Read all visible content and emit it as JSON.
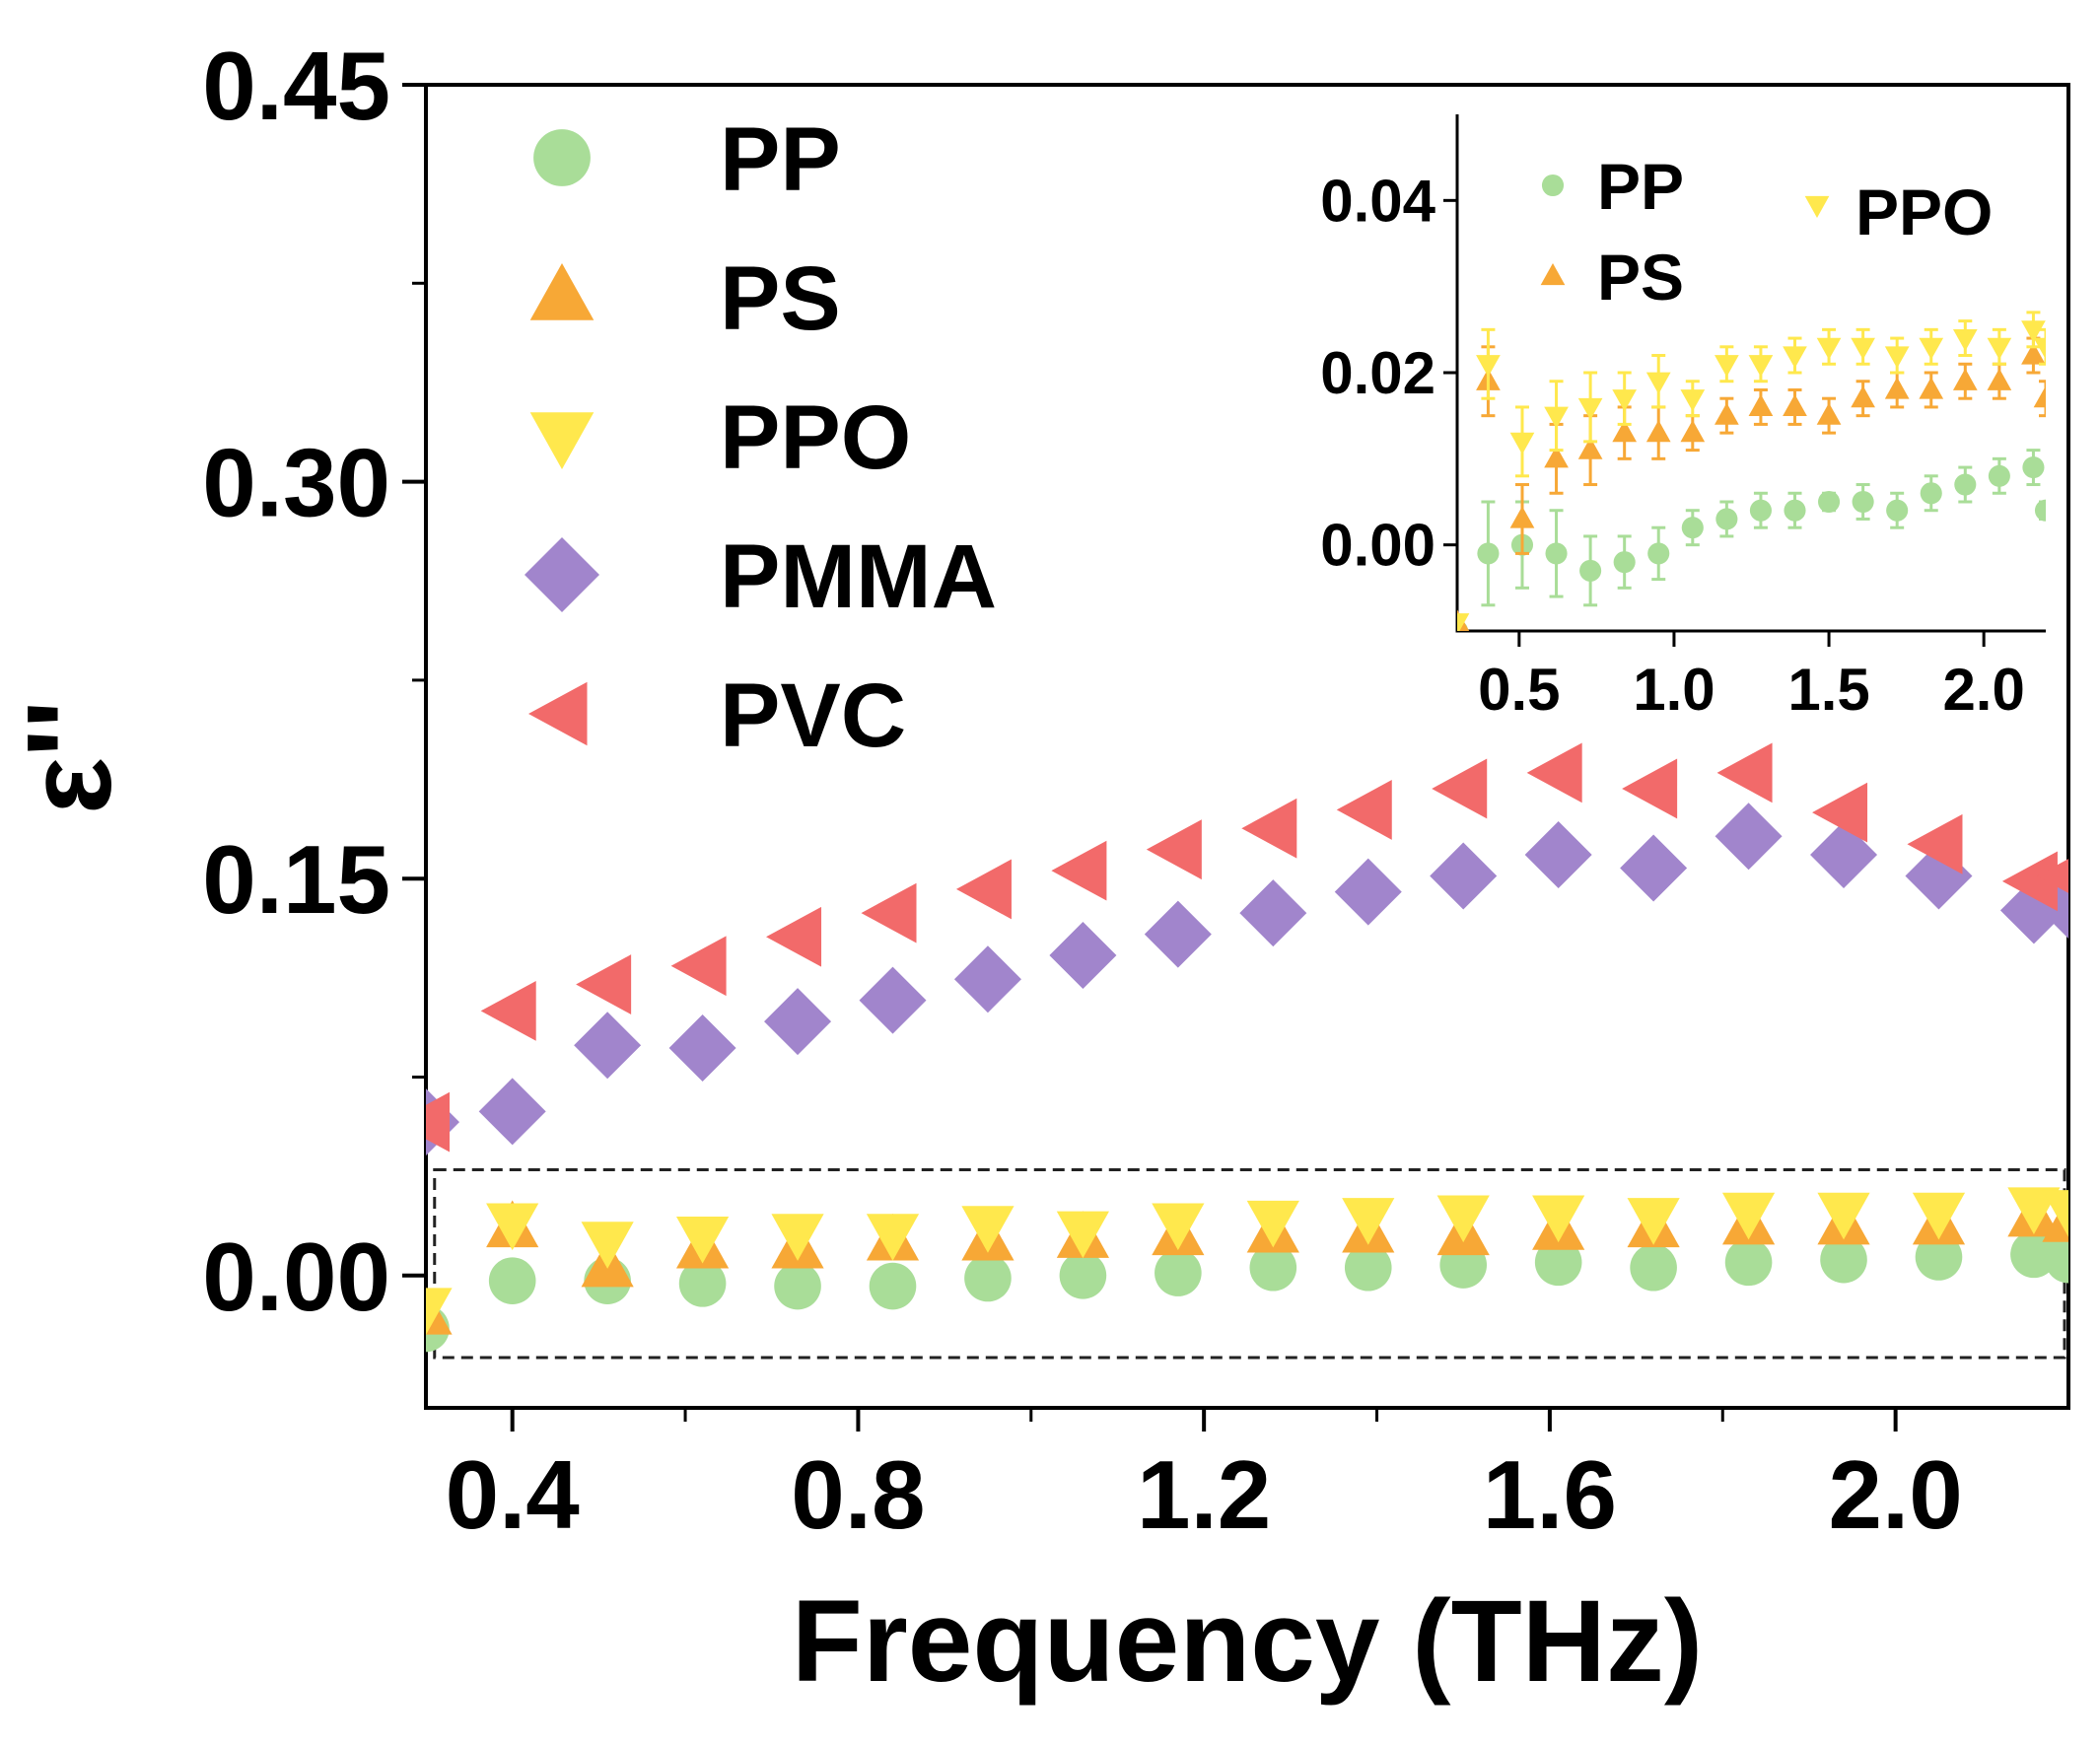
{
  "chart_data": [
    {
      "type": "scatter",
      "panel": "main",
      "title": "",
      "xlabel": "Frequency (THz)",
      "ylabel": "ε''",
      "xlim": [
        0.3,
        2.2
      ],
      "ylim": [
        -0.05,
        0.45
      ],
      "xticks": [
        0.4,
        0.8,
        1.2,
        1.6,
        2.0
      ],
      "xtick_labels": [
        "0.4",
        "0.8",
        "1.2",
        "1.6",
        "2.0"
      ],
      "yticks": [
        0.0,
        0.15,
        0.3,
        0.45
      ],
      "ytick_labels": [
        "0.00",
        "0.15",
        "0.30",
        "0.45"
      ],
      "legend_position": "top-left",
      "annotation": "dashed box marks region enlarged in inset",
      "highlight_box": {
        "x": [
          0.31,
          2.2
        ],
        "y": [
          -0.031,
          0.04
        ]
      },
      "x": [
        0.3,
        0.4,
        0.51,
        0.62,
        0.73,
        0.84,
        0.95,
        1.06,
        1.17,
        1.28,
        1.39,
        1.5,
        1.61,
        1.72,
        1.83,
        1.94,
        2.05,
        2.16,
        2.2
      ],
      "series": [
        {
          "name": "PP",
          "marker": "circle",
          "color": "#a9dd98",
          "values": [
            -0.02,
            -0.002,
            -0.002,
            -0.003,
            -0.004,
            -0.004,
            -0.001,
            0.0,
            0.001,
            0.003,
            0.003,
            0.004,
            0.005,
            0.003,
            0.005,
            0.006,
            0.007,
            0.008,
            0.006
          ]
        },
        {
          "name": "PS",
          "marker": "triangle-up",
          "color": "#f7a836",
          "values": [
            -0.015,
            0.018,
            0.003,
            0.01,
            0.01,
            0.013,
            0.013,
            0.014,
            0.015,
            0.016,
            0.016,
            0.015,
            0.017,
            0.018,
            0.019,
            0.019,
            0.019,
            0.022,
            0.02
          ]
        },
        {
          "name": "PPO",
          "marker": "triangle-down",
          "color": "#ffe84d",
          "values": [
            -0.012,
            0.02,
            0.013,
            0.015,
            0.016,
            0.016,
            0.019,
            0.017,
            0.02,
            0.021,
            0.022,
            0.023,
            0.023,
            0.022,
            0.024,
            0.024,
            0.024,
            0.026,
            0.025
          ]
        },
        {
          "name": "PMMA",
          "marker": "diamond",
          "color": "#a185cc",
          "values": [
            0.058,
            0.062,
            0.087,
            0.086,
            0.096,
            0.104,
            0.112,
            0.121,
            0.129,
            0.137,
            0.145,
            0.151,
            0.159,
            0.154,
            0.166,
            0.159,
            0.151,
            0.138,
            0.14
          ]
        },
        {
          "name": "PVC",
          "marker": "triangle-left",
          "color": "#f26a6a",
          "values": [
            0.058,
            0.1,
            0.11,
            0.117,
            0.128,
            0.137,
            0.146,
            0.153,
            0.161,
            0.169,
            0.176,
            0.184,
            0.19,
            0.184,
            0.19,
            0.175,
            0.163,
            0.149,
            0.151
          ]
        }
      ]
    },
    {
      "type": "scatter",
      "panel": "inset",
      "title": "",
      "xlabel": "",
      "ylabel": "",
      "xlim": [
        0.3,
        2.2
      ],
      "ylim": [
        -0.01,
        0.05
      ],
      "xticks": [
        0.5,
        1.0,
        1.5,
        2.0
      ],
      "xtick_labels": [
        "0.5",
        "1.0",
        "1.5",
        "2.0"
      ],
      "yticks": [
        0.0,
        0.02,
        0.04
      ],
      "ytick_labels": [
        "0.00",
        "0.02",
        "0.04"
      ],
      "legend_position": "top",
      "error_bars": true,
      "x": [
        0.3,
        0.4,
        0.51,
        0.62,
        0.73,
        0.84,
        0.95,
        1.06,
        1.17,
        1.28,
        1.39,
        1.5,
        1.61,
        1.72,
        1.83,
        1.94,
        2.05,
        2.16,
        2.2
      ],
      "series": [
        {
          "name": "PP",
          "marker": "circle",
          "color": "#a9dd98",
          "values": [
            -0.01,
            -0.001,
            0.0,
            -0.001,
            -0.003,
            -0.002,
            -0.001,
            0.002,
            0.003,
            0.004,
            0.004,
            0.005,
            0.005,
            0.004,
            0.006,
            0.007,
            0.008,
            0.009,
            0.004
          ],
          "errors": [
            0.0,
            0.006,
            0.005,
            0.005,
            0.004,
            0.003,
            0.003,
            0.002,
            0.002,
            0.002,
            0.002,
            0.001,
            0.002,
            0.002,
            0.002,
            0.002,
            0.002,
            0.002,
            0.001
          ]
        },
        {
          "name": "PS",
          "marker": "triangle-up",
          "color": "#f7a836",
          "values": [
            -0.009,
            0.019,
            0.003,
            0.01,
            0.011,
            0.013,
            0.013,
            0.013,
            0.015,
            0.016,
            0.016,
            0.015,
            0.017,
            0.018,
            0.018,
            0.019,
            0.019,
            0.022,
            0.017
          ],
          "errors": [
            0.0,
            0.004,
            0.004,
            0.004,
            0.004,
            0.003,
            0.003,
            0.002,
            0.002,
            0.002,
            0.002,
            0.002,
            0.002,
            0.002,
            0.002,
            0.002,
            0.002,
            0.002,
            0.002
          ]
        },
        {
          "name": "PPO",
          "marker": "triangle-down",
          "color": "#ffe84d",
          "values": [
            -0.009,
            0.021,
            0.012,
            0.015,
            0.016,
            0.017,
            0.019,
            0.017,
            0.021,
            0.021,
            0.022,
            0.023,
            0.023,
            0.022,
            0.023,
            0.024,
            0.023,
            0.025,
            0.023
          ],
          "errors": [
            0.0,
            0.004,
            0.004,
            0.004,
            0.004,
            0.003,
            0.003,
            0.002,
            0.002,
            0.002,
            0.002,
            0.002,
            0.002,
            0.002,
            0.002,
            0.002,
            0.002,
            0.002,
            0.002
          ]
        }
      ]
    }
  ]
}
